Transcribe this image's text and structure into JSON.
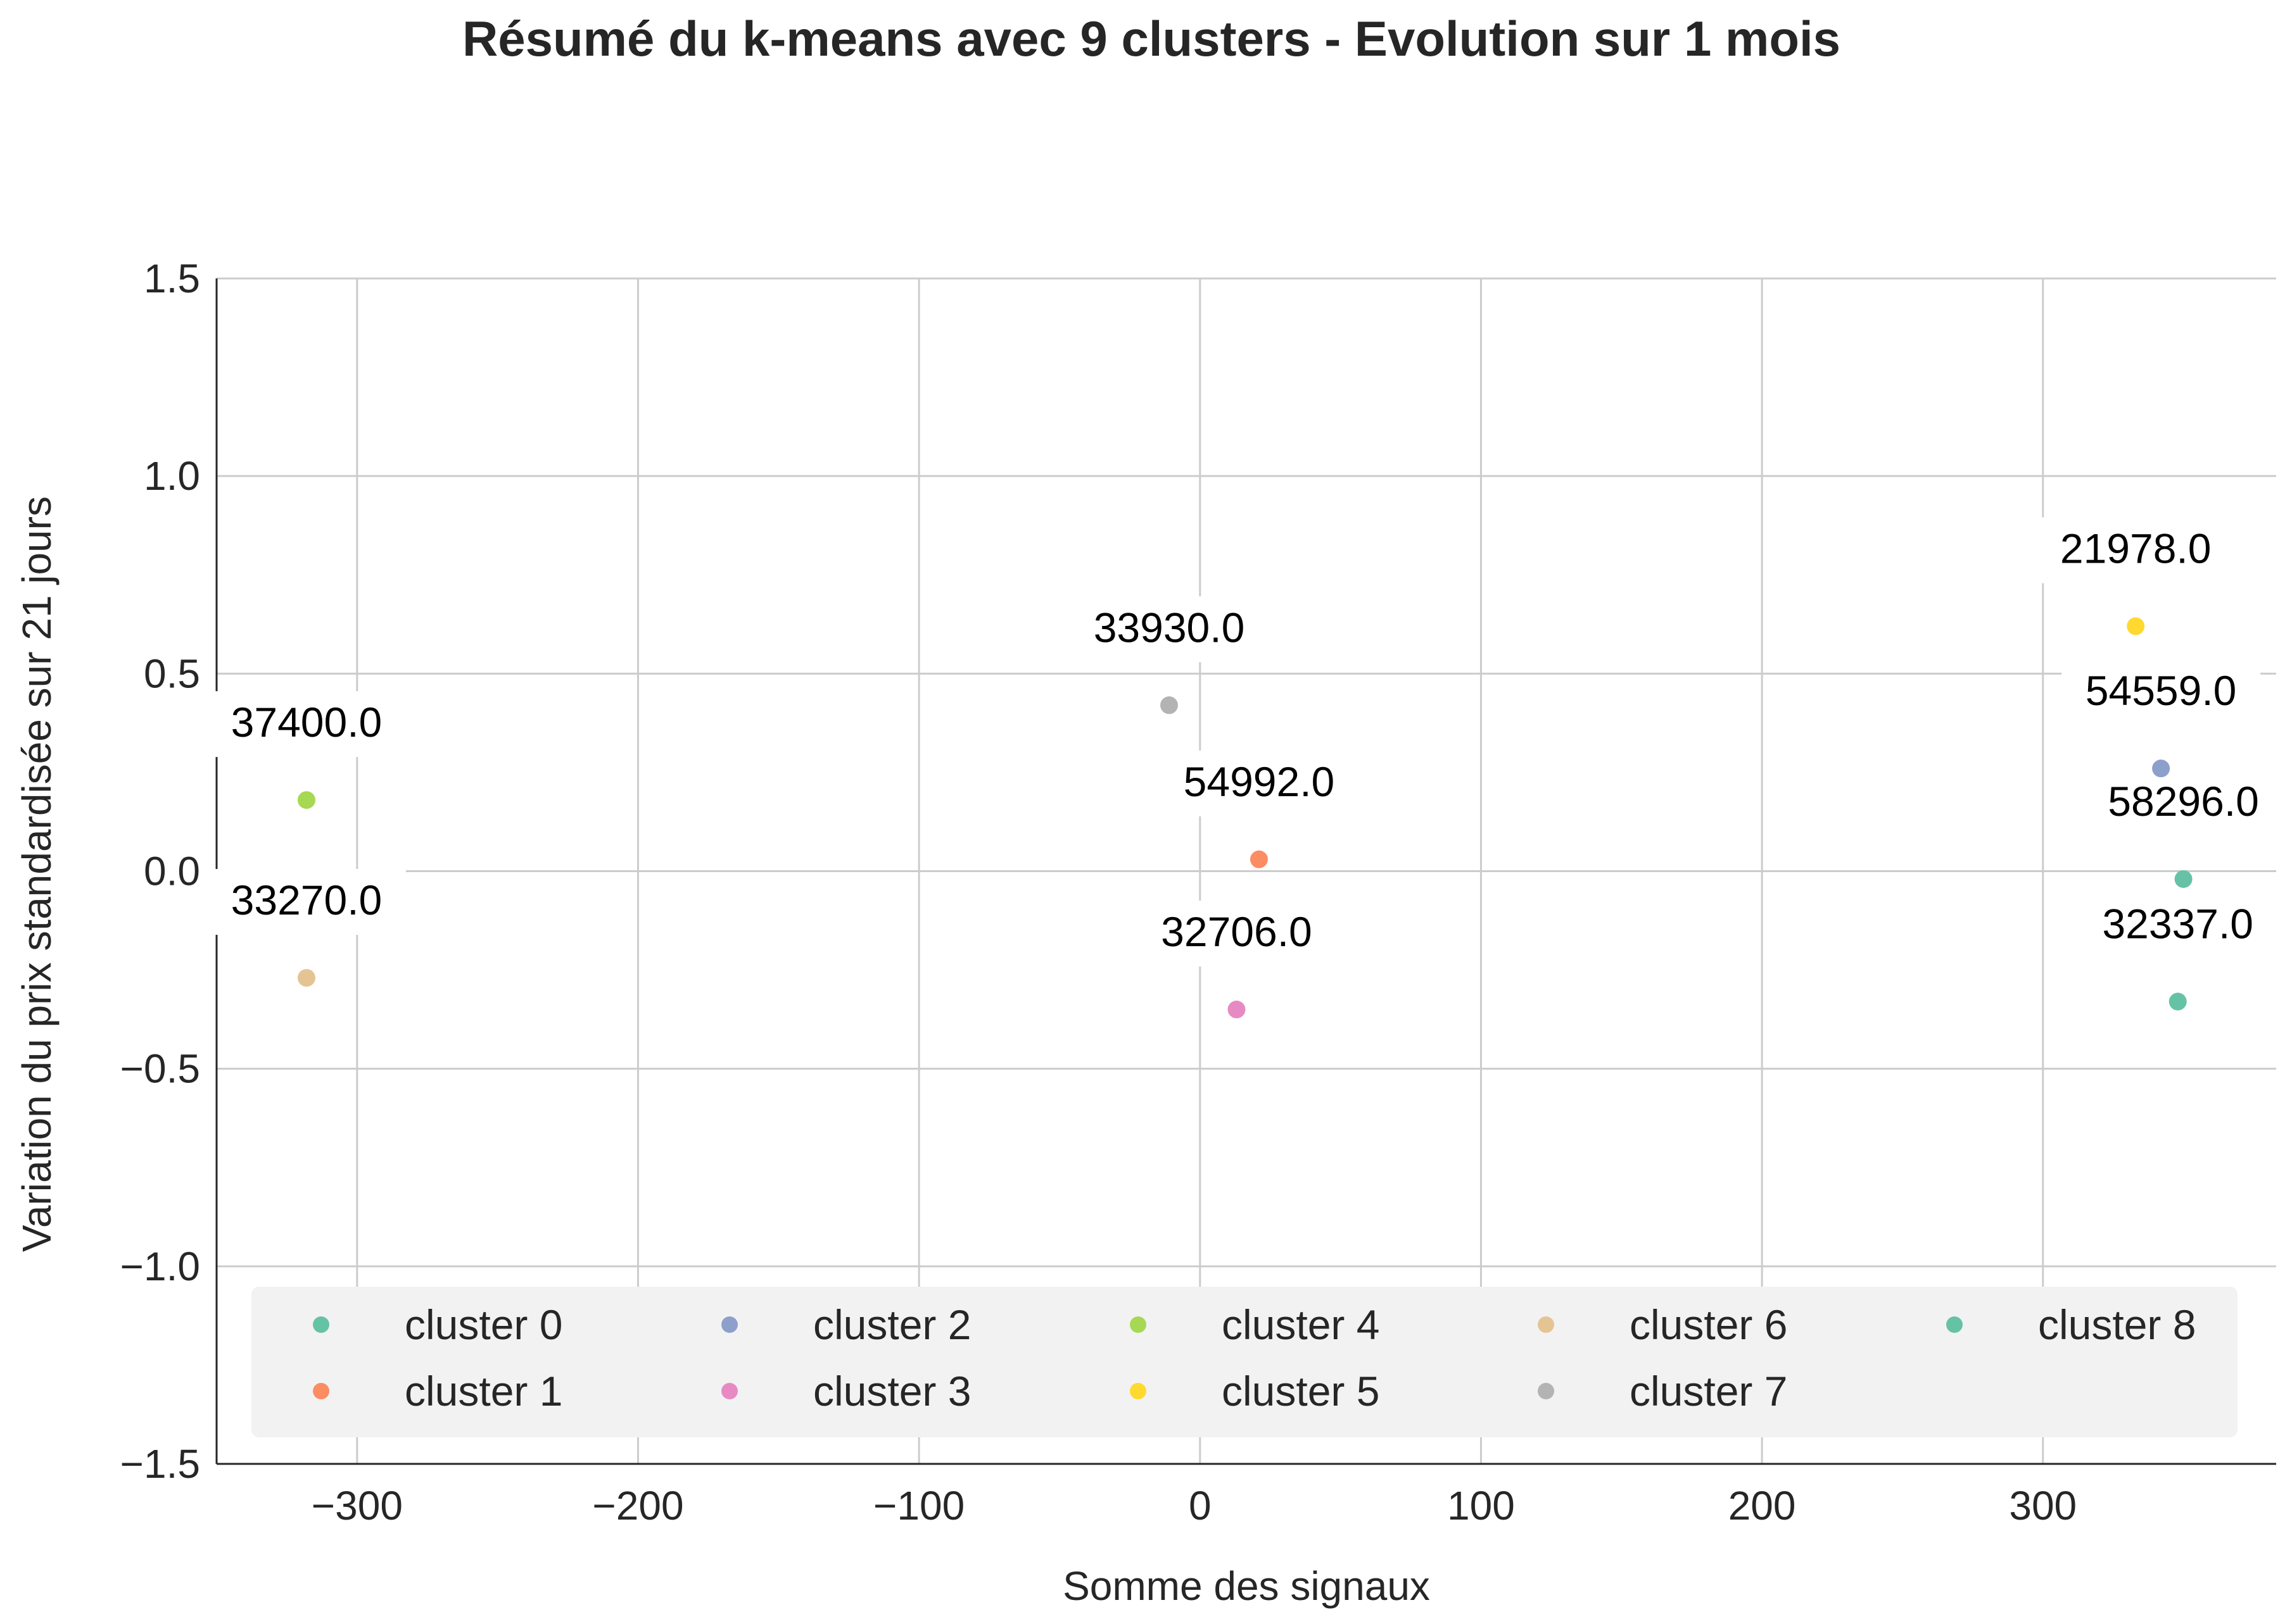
{
  "chart_data": {
    "type": "scatter",
    "title": "Résumé du k-means avec 9 clusters - Evolution sur 1 mois",
    "xlabel": "Somme des signaux",
    "ylabel": "Variation du prix standardisée sur 21 jours",
    "xlim": [
      -350,
      383
    ],
    "ylim": [
      -1.5,
      1.5
    ],
    "xticks": [
      -300,
      -200,
      -100,
      0,
      100,
      200,
      300
    ],
    "xtick_labels": [
      "−300",
      "−200",
      "−100",
      "0",
      "100",
      "200",
      "300"
    ],
    "yticks": [
      -1.5,
      -1.0,
      -0.5,
      0.0,
      0.5,
      1.0,
      1.5
    ],
    "ytick_labels": [
      "−1.5",
      "−1.0",
      "−0.5",
      "0.0",
      "0.5",
      "1.0",
      "1.5"
    ],
    "grid": true,
    "legend_position": "lower-center",
    "series": [
      {
        "name": "cluster 0",
        "color": "#66c2a5",
        "x": 350,
        "y": -0.02,
        "label": "58296.0"
      },
      {
        "name": "cluster 1",
        "color": "#fc8d62",
        "x": 21,
        "y": 0.03,
        "label": "54992.0"
      },
      {
        "name": "cluster 2",
        "color": "#8da0cb",
        "x": 342,
        "y": 0.26,
        "label": "54559.0"
      },
      {
        "name": "cluster 3",
        "color": "#e78ac3",
        "x": 13,
        "y": -0.35,
        "label": "32706.0"
      },
      {
        "name": "cluster 4",
        "color": "#a6d854",
        "x": -318,
        "y": 0.18,
        "label": "37400.0"
      },
      {
        "name": "cluster 5",
        "color": "#ffd92f",
        "x": 333,
        "y": 0.62,
        "label": "21978.0"
      },
      {
        "name": "cluster 6",
        "color": "#e5c494",
        "x": -318,
        "y": -0.27,
        "label": "33270.0"
      },
      {
        "name": "cluster 7",
        "color": "#b3b3b3",
        "x": -11,
        "y": 0.42,
        "label": "33930.0"
      },
      {
        "name": "cluster 8",
        "color": "#66c2a5",
        "x": 348,
        "y": -0.33,
        "label": "32337.0"
      }
    ]
  }
}
